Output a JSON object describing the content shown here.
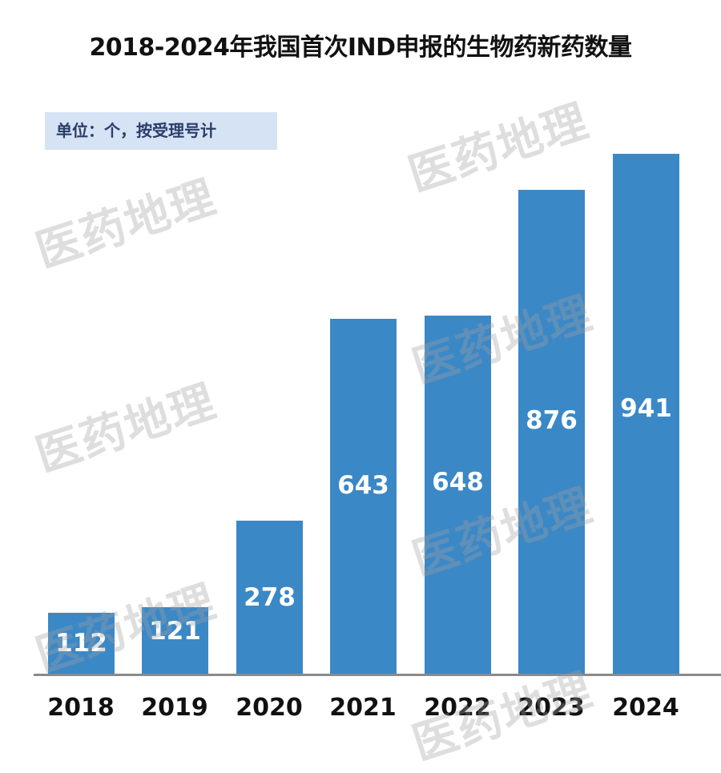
{
  "title": "2018-2024年我国首次IND申报的生物药新药数量",
  "unit_note": "单位：个，按受理号计",
  "watermark_text": "医药地理",
  "colors": {
    "bar": "#3b88c6",
    "unit_box_bg": "#d6e3f4",
    "unit_box_text": "#2a3d6b",
    "axis": "#8a8a8a",
    "label_text": "#ffffff"
  },
  "chart_data": {
    "type": "bar",
    "title": "2018-2024年我国首次IND申报的生物药新药数量",
    "subtitle": "单位：个，按受理号计",
    "xlabel": "",
    "ylabel": "",
    "categories": [
      "2018",
      "2019",
      "2020",
      "2021",
      "2022",
      "2023",
      "2024"
    ],
    "values": [
      112,
      121,
      278,
      643,
      648,
      876,
      941
    ],
    "ylim": [
      0,
      941
    ],
    "grid": false,
    "legend": "none",
    "data_labels": true
  },
  "bars": [
    {
      "year": "2018",
      "value": "112"
    },
    {
      "year": "2019",
      "value": "121"
    },
    {
      "year": "2020",
      "value": "278"
    },
    {
      "year": "2021",
      "value": "643"
    },
    {
      "year": "2022",
      "value": "648"
    },
    {
      "year": "2023",
      "value": "876"
    },
    {
      "year": "2024",
      "value": "941"
    }
  ]
}
